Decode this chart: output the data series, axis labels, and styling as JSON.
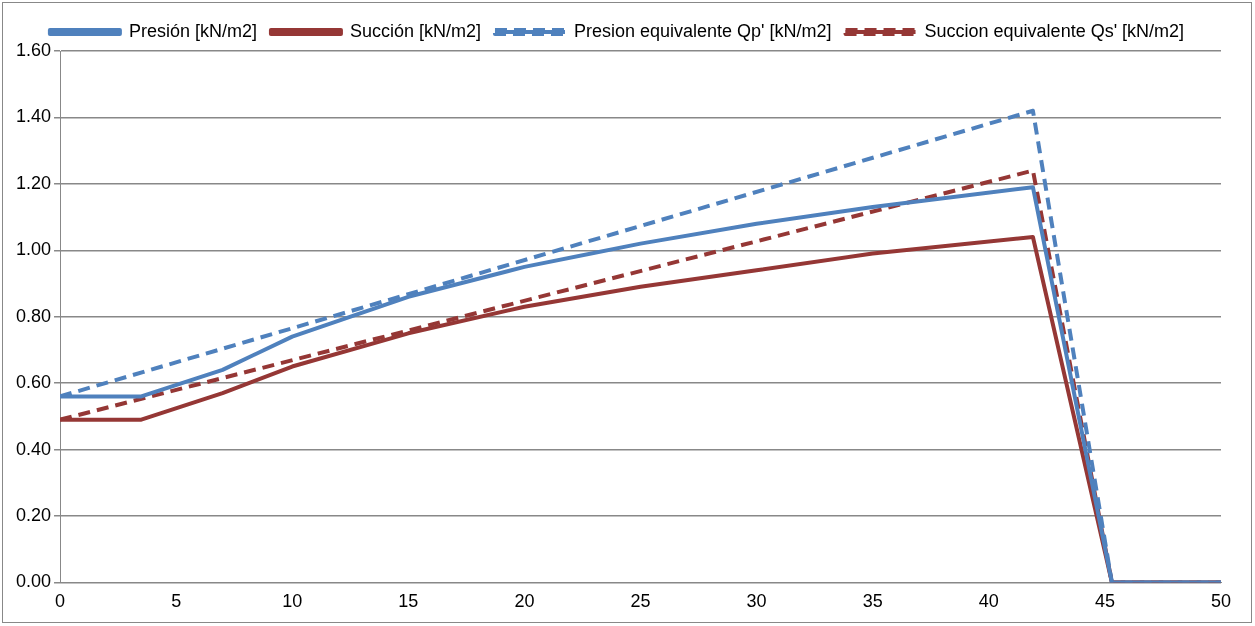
{
  "chart_data": {
    "type": "line",
    "legend": "top",
    "grid": "y",
    "marker": "none",
    "xlim": [
      0,
      50
    ],
    "xticks": [
      0,
      5,
      10,
      15,
      20,
      25,
      30,
      35,
      40,
      45,
      50
    ],
    "ylim": [
      0,
      1.6
    ],
    "yticks": [
      {
        "value": 0,
        "label": "0.00"
      },
      {
        "value": 0.2,
        "label": "0.20"
      },
      {
        "value": 0.4,
        "label": "0.40"
      },
      {
        "value": 0.6,
        "label": "0.60"
      },
      {
        "value": 0.8,
        "label": "0.80"
      },
      {
        "value": 1.0,
        "label": "1.00"
      },
      {
        "value": 1.2,
        "label": "1.20"
      },
      {
        "value": 1.4,
        "label": "1.40"
      },
      {
        "value": 1.6,
        "label": "1.60"
      }
    ],
    "series": [
      {
        "name": "Presión [kN/m2]",
        "color": "#4f81bd",
        "line_style": "solid",
        "x": [
          0,
          3.5,
          7,
          10,
          15,
          20,
          25,
          30,
          35,
          41.9,
          45.3,
          50
        ],
        "values": [
          0.56,
          0.56,
          0.64,
          0.74,
          0.86,
          0.95,
          1.02,
          1.08,
          1.13,
          1.19,
          0,
          0
        ]
      },
      {
        "name": "Succión [kN/m2]",
        "color": "#953735",
        "line_style": "solid",
        "x": [
          0,
          3.5,
          7,
          10,
          15,
          20,
          25,
          30,
          35,
          41.9,
          45.3,
          50
        ],
        "values": [
          0.49,
          0.49,
          0.57,
          0.65,
          0.75,
          0.83,
          0.89,
          0.94,
          0.99,
          1.04,
          0,
          0
        ]
      },
      {
        "name": "Presion equivalente Qp' [kN/m2]",
        "color": "#4f81bd",
        "line_style": "dashed",
        "x": [
          0,
          41.9,
          45.3,
          50
        ],
        "values": [
          0.56,
          1.42,
          0,
          0
        ]
      },
      {
        "name": "Succion equivalente Qs' [kN/m2]",
        "color": "#953735",
        "line_style": "dashed",
        "x": [
          0,
          41.9,
          45.3,
          50
        ],
        "values": [
          0.49,
          1.24,
          0,
          0
        ]
      }
    ]
  }
}
